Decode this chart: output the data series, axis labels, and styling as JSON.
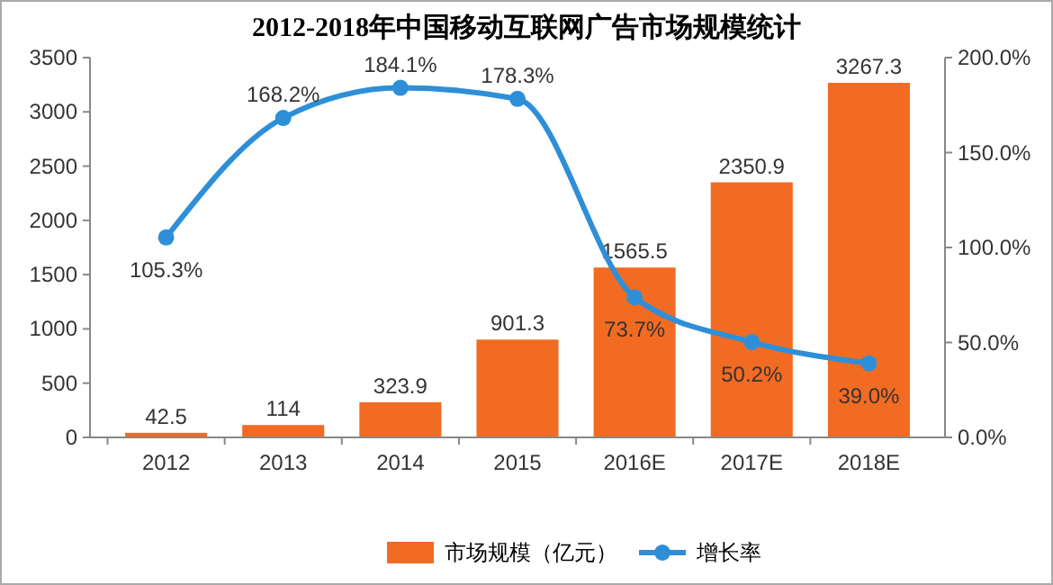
{
  "chart_data": {
    "type": "bar",
    "title": "2012-2018年中国移动互联网广告市场规模统计",
    "categories": [
      "2012",
      "2013",
      "2014",
      "2015",
      "2016E",
      "2017E",
      "2018E"
    ],
    "series": [
      {
        "name": "市场规模（亿元）",
        "color": "#f26b22",
        "values": [
          42.5,
          114,
          323.9,
          901.3,
          1565.5,
          2350.9,
          3267.3
        ],
        "value_labels": [
          "42.5",
          "114",
          "323.9",
          "901.3",
          "1565.5",
          "2350.9",
          "3267.3"
        ]
      },
      {
        "name": "增长率",
        "type": "line",
        "axis": "y2",
        "color": "#2e8fd8",
        "marker": "circle",
        "values": [
          105.3,
          168.2,
          184.1,
          178.3,
          73.7,
          50.2,
          39.0
        ],
        "value_labels": [
          "105.3%",
          "168.2%",
          "184.1%",
          "178.3%",
          "73.7%",
          "50.2%",
          "39.0%"
        ]
      }
    ],
    "ylim": [
      0,
      3500
    ],
    "yticks": [
      0,
      500,
      1000,
      1500,
      2000,
      2500,
      3000,
      3500
    ],
    "y2lim": [
      0,
      200
    ],
    "y2ticks": [
      {
        "value": 0,
        "label": "0.0%"
      },
      {
        "value": 50,
        "label": "50.0%"
      },
      {
        "value": 100,
        "label": "100.0%"
      },
      {
        "value": 150,
        "label": "150.0%"
      },
      {
        "value": 200,
        "label": "200.0%"
      }
    ],
    "grid": false,
    "legend": "bottom"
  }
}
